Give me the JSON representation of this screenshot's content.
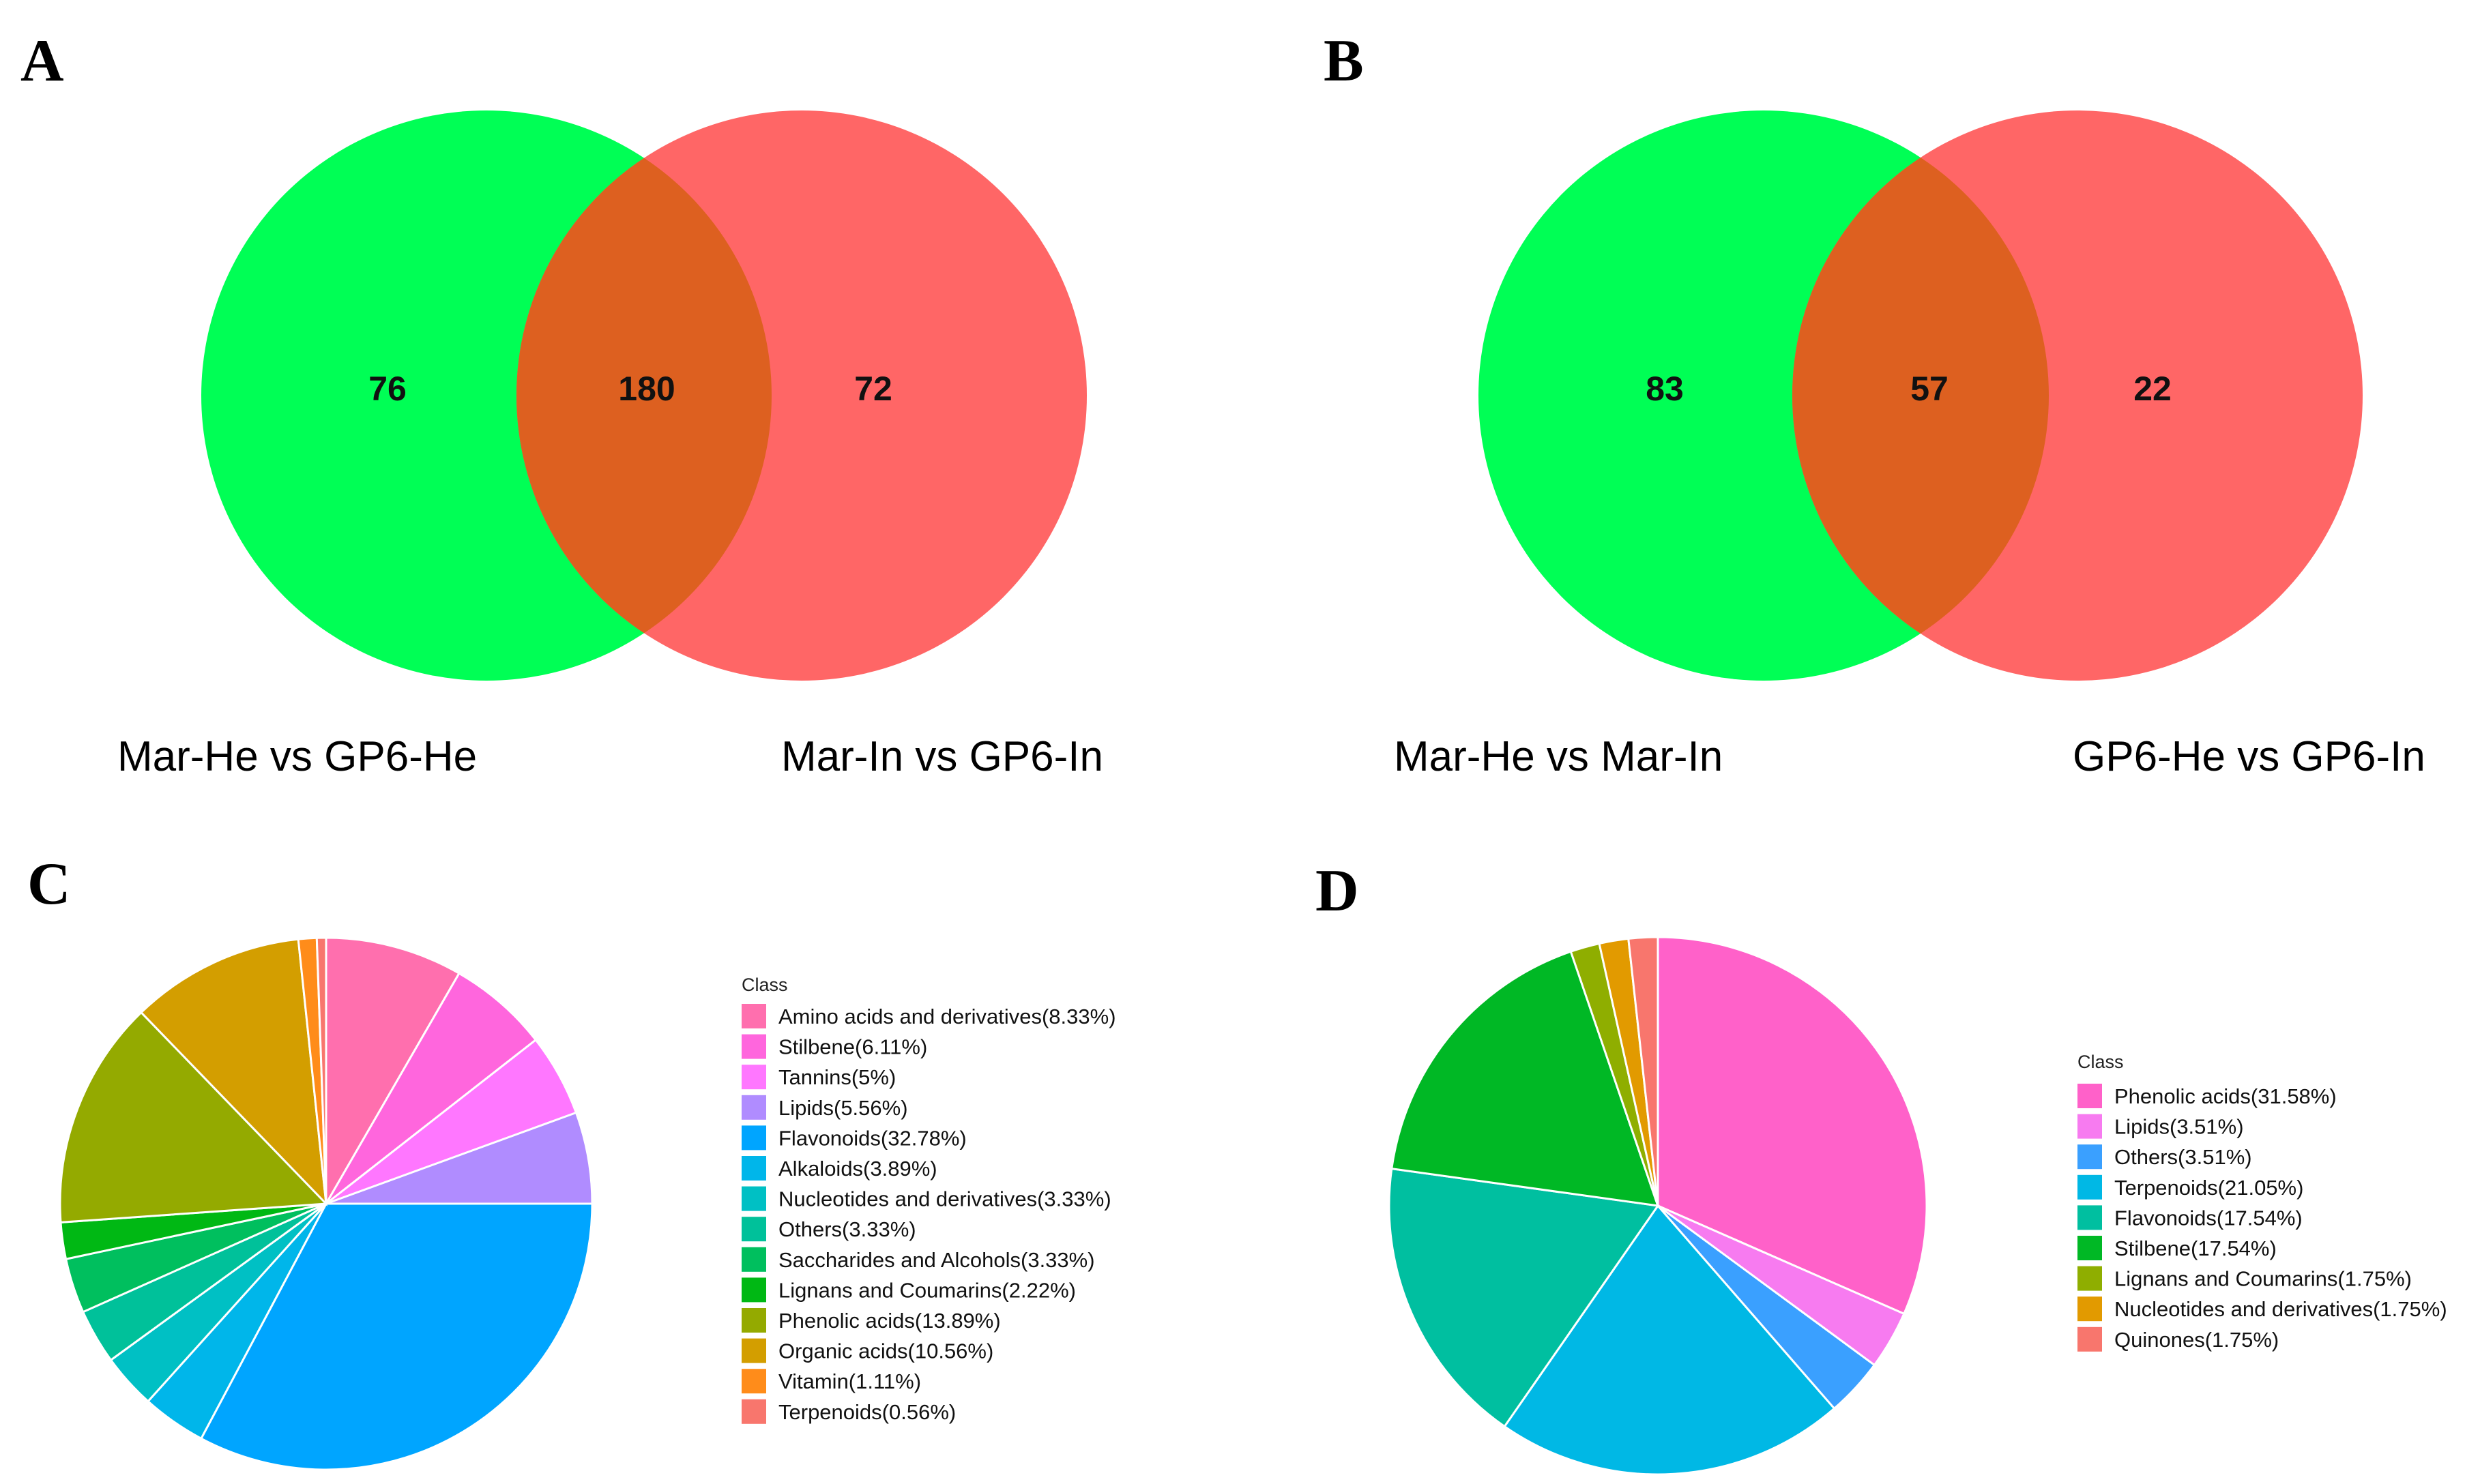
{
  "panels": {
    "A": {
      "letter": "A",
      "set_left_label": "Mar-He vs GP6-He",
      "set_right_label": "Mar-In vs GP6-In",
      "left_only": "76",
      "overlap": "180",
      "right_only": "72"
    },
    "B": {
      "letter": "B",
      "set_left_label": "Mar-He vs Mar-In",
      "set_right_label": "GP6-He vs GP6-In",
      "left_only": "83",
      "overlap": "57",
      "right_only": "22"
    },
    "C": {
      "letter": "C"
    },
    "D": {
      "letter": "D"
    }
  },
  "colors": {
    "venn_left": "#00ff55",
    "venn_right": "#ff6666",
    "venn_overlap": "#dd6020"
  },
  "chart_data": [
    {
      "panel": "A",
      "type": "venn",
      "sets": [
        "Mar-He vs GP6-He",
        "Mar-In vs GP6-In"
      ],
      "values": {
        "left_only": 76,
        "overlap": 180,
        "right_only": 72
      }
    },
    {
      "panel": "B",
      "type": "venn",
      "sets": [
        "Mar-He vs Mar-In",
        "GP6-He vs GP6-In"
      ],
      "values": {
        "left_only": 83,
        "overlap": 57,
        "right_only": 22
      }
    },
    {
      "panel": "C",
      "type": "pie",
      "legend_title": "Class",
      "legend_placement": "right",
      "slices": [
        {
          "label": "Amino acids and derivatives(8.33%)",
          "value": 8.33,
          "color": "#ff6fae"
        },
        {
          "label": "Stilbene(6.11%)",
          "value": 6.11,
          "color": "#ff66dd"
        },
        {
          "label": "Tannins(5%)",
          "value": 5.0,
          "color": "#ff77ff"
        },
        {
          "label": "Lipids(5.56%)",
          "value": 5.56,
          "color": "#b08cff"
        },
        {
          "label": "Flavonoids(32.78%)",
          "value": 32.78,
          "color": "#00a5ff"
        },
        {
          "label": "Alkaloids(3.89%)",
          "value": 3.89,
          "color": "#00b6ea"
        },
        {
          "label": "Nucleotides and derivatives(3.33%)",
          "value": 3.33,
          "color": "#00c0c4"
        },
        {
          "label": "Others(3.33%)",
          "value": 3.33,
          "color": "#00c19a"
        },
        {
          "label": "Saccharides and Alcohols(3.33%)",
          "value": 3.33,
          "color": "#00bf5e"
        },
        {
          "label": "Lignans and Coumarins(2.22%)",
          "value": 2.22,
          "color": "#00b814"
        },
        {
          "label": "Phenolic acids(13.89%)",
          "value": 13.89,
          "color": "#94aa00"
        },
        {
          "label": "Organic acids(10.56%)",
          "value": 10.56,
          "color": "#d39e00"
        },
        {
          "label": "Vitamin(1.11%)",
          "value": 1.11,
          "color": "#ff8c1a"
        },
        {
          "label": "Terpenoids(0.56%)",
          "value": 0.56,
          "color": "#f8766d"
        }
      ]
    },
    {
      "panel": "D",
      "type": "pie",
      "legend_title": "Class",
      "legend_placement": "right",
      "slices": [
        {
          "label": "Phenolic acids(31.58%)",
          "value": 31.58,
          "color": "#ff61c9"
        },
        {
          "label": "Lipids(3.51%)",
          "value": 3.51,
          "color": "#f77bf0"
        },
        {
          "label": "Others(3.51%)",
          "value": 3.51,
          "color": "#3aa0ff"
        },
        {
          "label": "Terpenoids(21.05%)",
          "value": 21.05,
          "color": "#00b8e5"
        },
        {
          "label": "Flavonoids(17.54%)",
          "value": 17.54,
          "color": "#00bfa0"
        },
        {
          "label": "Stilbene(17.54%)",
          "value": 17.54,
          "color": "#00b825"
        },
        {
          "label": "Lignans and Coumarins(1.75%)",
          "value": 1.75,
          "color": "#8fae00"
        },
        {
          "label": "Nucleotides and derivatives(1.75%)",
          "value": 1.75,
          "color": "#e29a00"
        },
        {
          "label": "Quinones(1.75%)",
          "value": 1.75,
          "color": "#f8766d"
        }
      ]
    }
  ]
}
